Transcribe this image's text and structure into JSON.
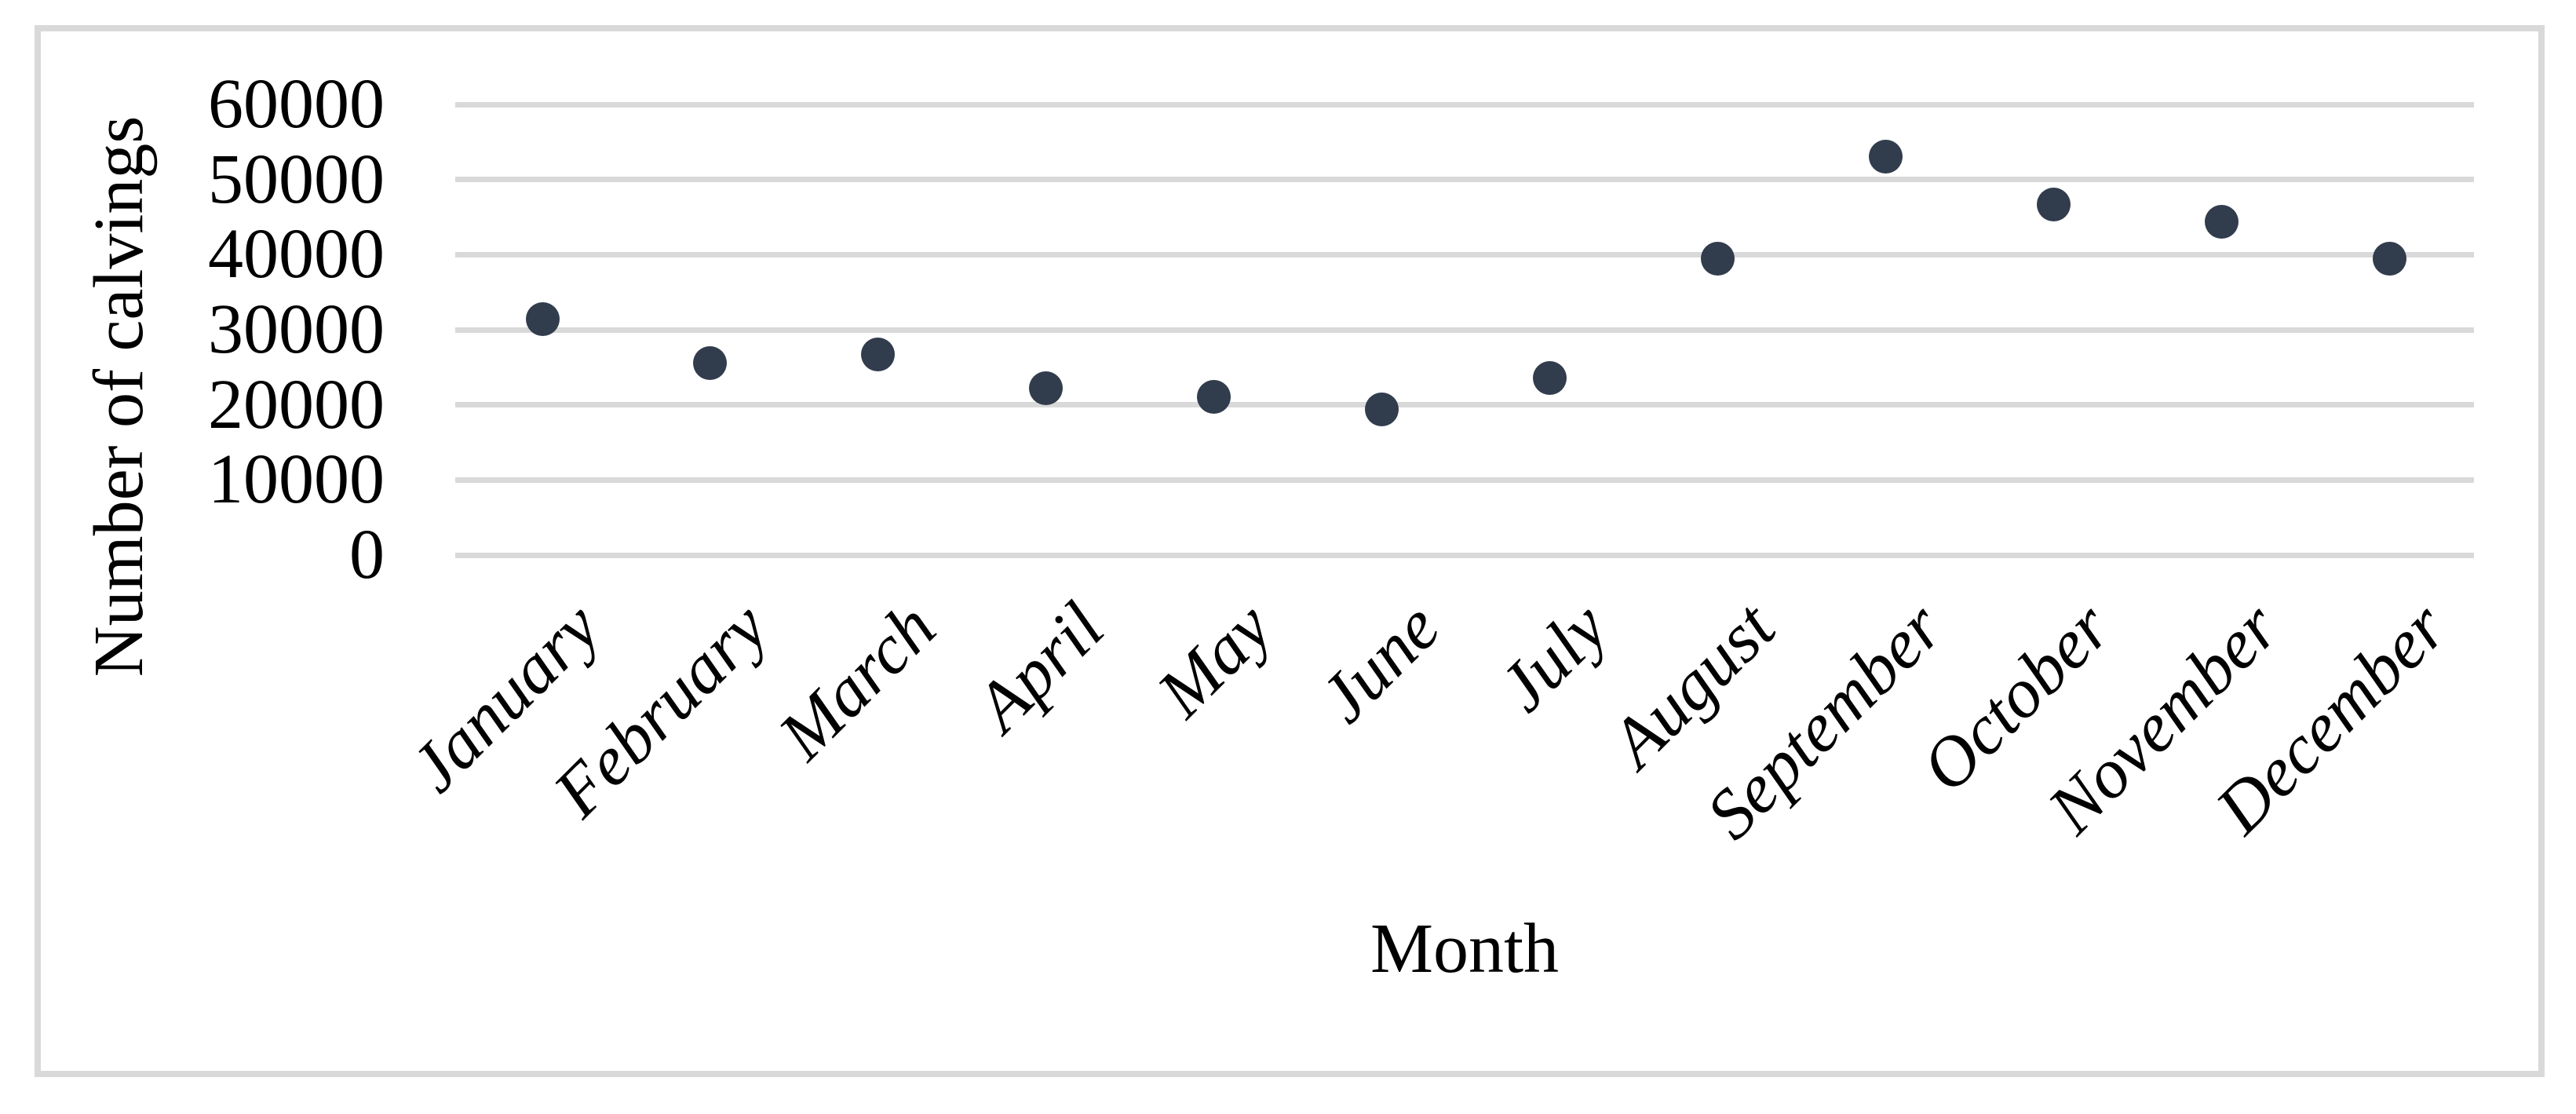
{
  "chart_data": {
    "type": "scatter",
    "title": "",
    "xlabel": "Month",
    "ylabel": "Number of calvings",
    "categories": [
      "January",
      "February",
      "March",
      "April",
      "May",
      "June",
      "July",
      "August",
      "September",
      "October",
      "November",
      "December"
    ],
    "values": [
      31400,
      25600,
      26700,
      22200,
      21100,
      19400,
      23600,
      39500,
      53000,
      46700,
      44400,
      39500
    ],
    "y_ticks": [
      0,
      10000,
      20000,
      30000,
      40000,
      50000,
      60000
    ],
    "ylim": [
      0,
      60000
    ],
    "grid": true,
    "legend": false,
    "marker_color": "#313c4d",
    "gridline_color": "#d9d9d9",
    "border_color": "#d9d9d9",
    "x_tick_style": "italic, rotated 45 degrees"
  }
}
